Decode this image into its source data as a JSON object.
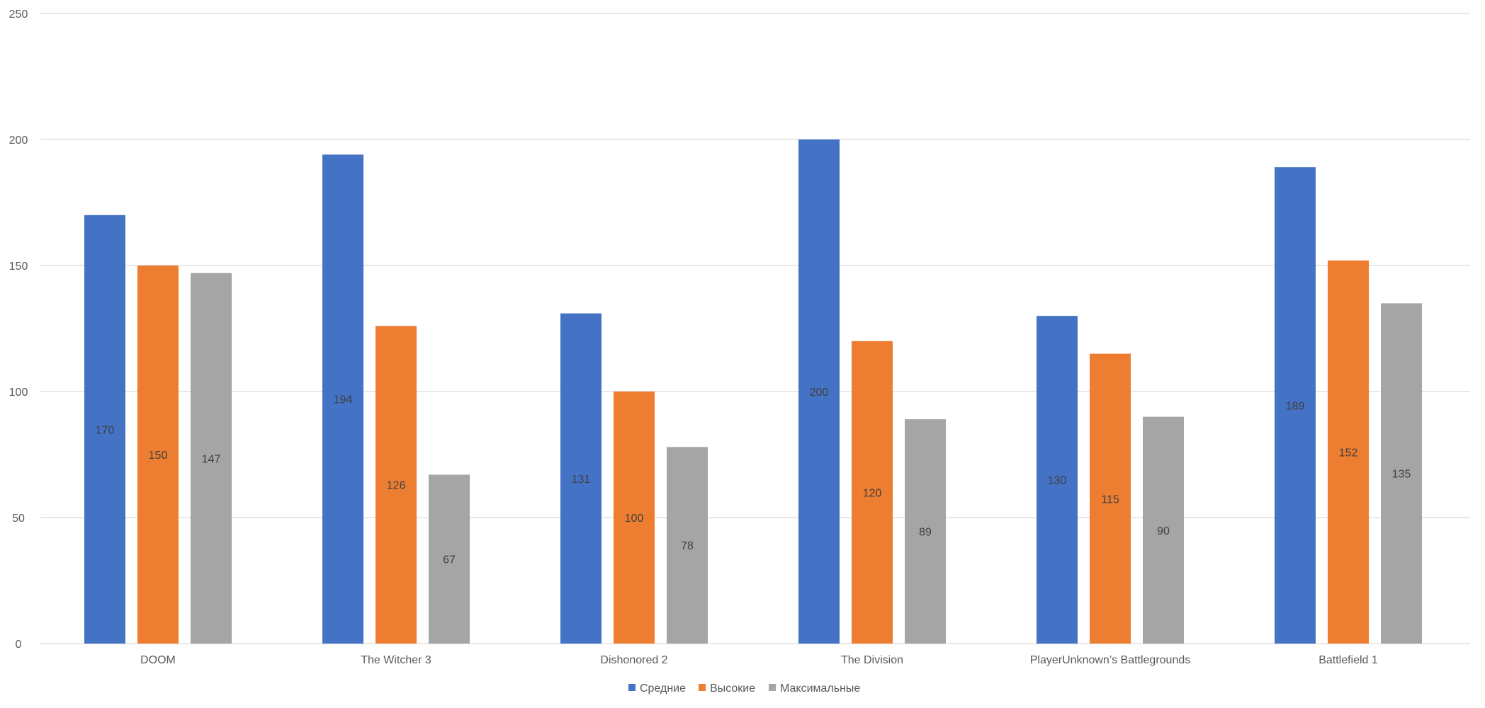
{
  "chart_data": {
    "type": "bar",
    "title": "",
    "xlabel": "",
    "ylabel": "",
    "ylim": [
      0,
      250
    ],
    "yticks": [
      0,
      50,
      100,
      150,
      200,
      250
    ],
    "grid": true,
    "legend_position": "bottom",
    "categories": [
      "DOOM",
      "The Witcher 3",
      "Dishonored 2",
      "The Division",
      "PlayerUnknown’s Battlegrounds",
      "Battlefield 1"
    ],
    "series": [
      {
        "name": "Средние",
        "color": "#4472c4",
        "values": [
          170,
          194,
          131,
          200,
          130,
          189
        ]
      },
      {
        "name": "Высокие",
        "color": "#ed7d31",
        "values": [
          150,
          126,
          100,
          120,
          115,
          152
        ]
      },
      {
        "name": "Максимальные",
        "color": "#a5a5a5",
        "values": [
          147,
          67,
          78,
          89,
          90,
          135
        ]
      }
    ]
  }
}
